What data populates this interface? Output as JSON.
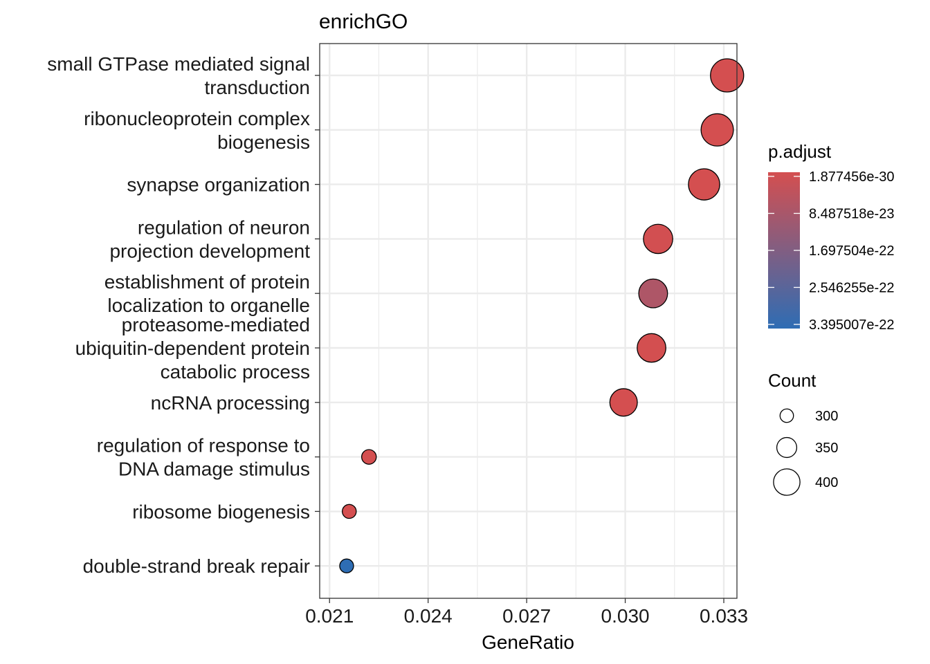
{
  "chart_data": {
    "type": "scatter",
    "title": "enrichGO",
    "xlabel": "GeneRatio",
    "ylabel": "",
    "xlim": [
      0.0207,
      0.0334
    ],
    "xticks": [
      "0.021",
      "0.024",
      "0.027",
      "0.030",
      "0.033"
    ],
    "xtick_values": [
      0.021,
      0.024,
      0.027,
      0.03,
      0.033
    ],
    "grid": true,
    "categories": [
      {
        "label": [
          "small GTPase mediated signal",
          "transduction"
        ],
        "x": 0.0331,
        "count": 420,
        "p_adjust": 1.877456e-30
      },
      {
        "label": [
          "ribonucleoprotein complex",
          "biogenesis"
        ],
        "x": 0.0328,
        "count": 413,
        "p_adjust": 5.2e-25
      },
      {
        "label": [
          "synapse organization"
        ],
        "x": 0.0324,
        "count": 405,
        "p_adjust": 3.1e-27
      },
      {
        "label": [
          "regulation of neuron",
          "projection development"
        ],
        "x": 0.031,
        "count": 390,
        "p_adjust": 4.6e-24
      },
      {
        "label": [
          "establishment of protein",
          "localization to organelle"
        ],
        "x": 0.03085,
        "count": 386,
        "p_adjust": 7.8e-23
      },
      {
        "label": [
          "proteasome-mediated",
          "ubiquitin-dependent protein",
          "catabolic process"
        ],
        "x": 0.0308,
        "count": 385,
        "p_adjust": 1.2e-24
      },
      {
        "label": [
          "ncRNA processing"
        ],
        "x": 0.02995,
        "count": 376,
        "p_adjust": 8e-26
      },
      {
        "label": [
          "regulation of response to",
          "DNA damage stimulus"
        ],
        "x": 0.0222,
        "count": 277,
        "p_adjust": 5e-25
      },
      {
        "label": [
          "ribosome biogenesis"
        ],
        "x": 0.0216,
        "count": 272,
        "p_adjust": 6e-25
      },
      {
        "label": [
          "double-strand break repair"
        ],
        "x": 0.02152,
        "count": 271,
        "p_adjust": 3.395007e-22
      }
    ],
    "color_legend": {
      "title": "p.adjust",
      "labels": [
        "1.877456e-30",
        "8.487518e-23",
        "1.697504e-22",
        "2.546255e-22",
        "3.395007e-22"
      ],
      "values": [
        1.877456e-30,
        8.487518e-23,
        1.697504e-22,
        2.546255e-22,
        3.395007e-22
      ],
      "low_color": "#d44f50",
      "high_color": "#2e6db4"
    },
    "size_legend": {
      "title": "Count",
      "labels": [
        "300",
        "350",
        "400"
      ],
      "values": [
        300,
        350,
        400
      ]
    },
    "point_stroke_color": "#000000",
    "panel_border_color": "#333333",
    "grid_color": "#ebebeb"
  }
}
